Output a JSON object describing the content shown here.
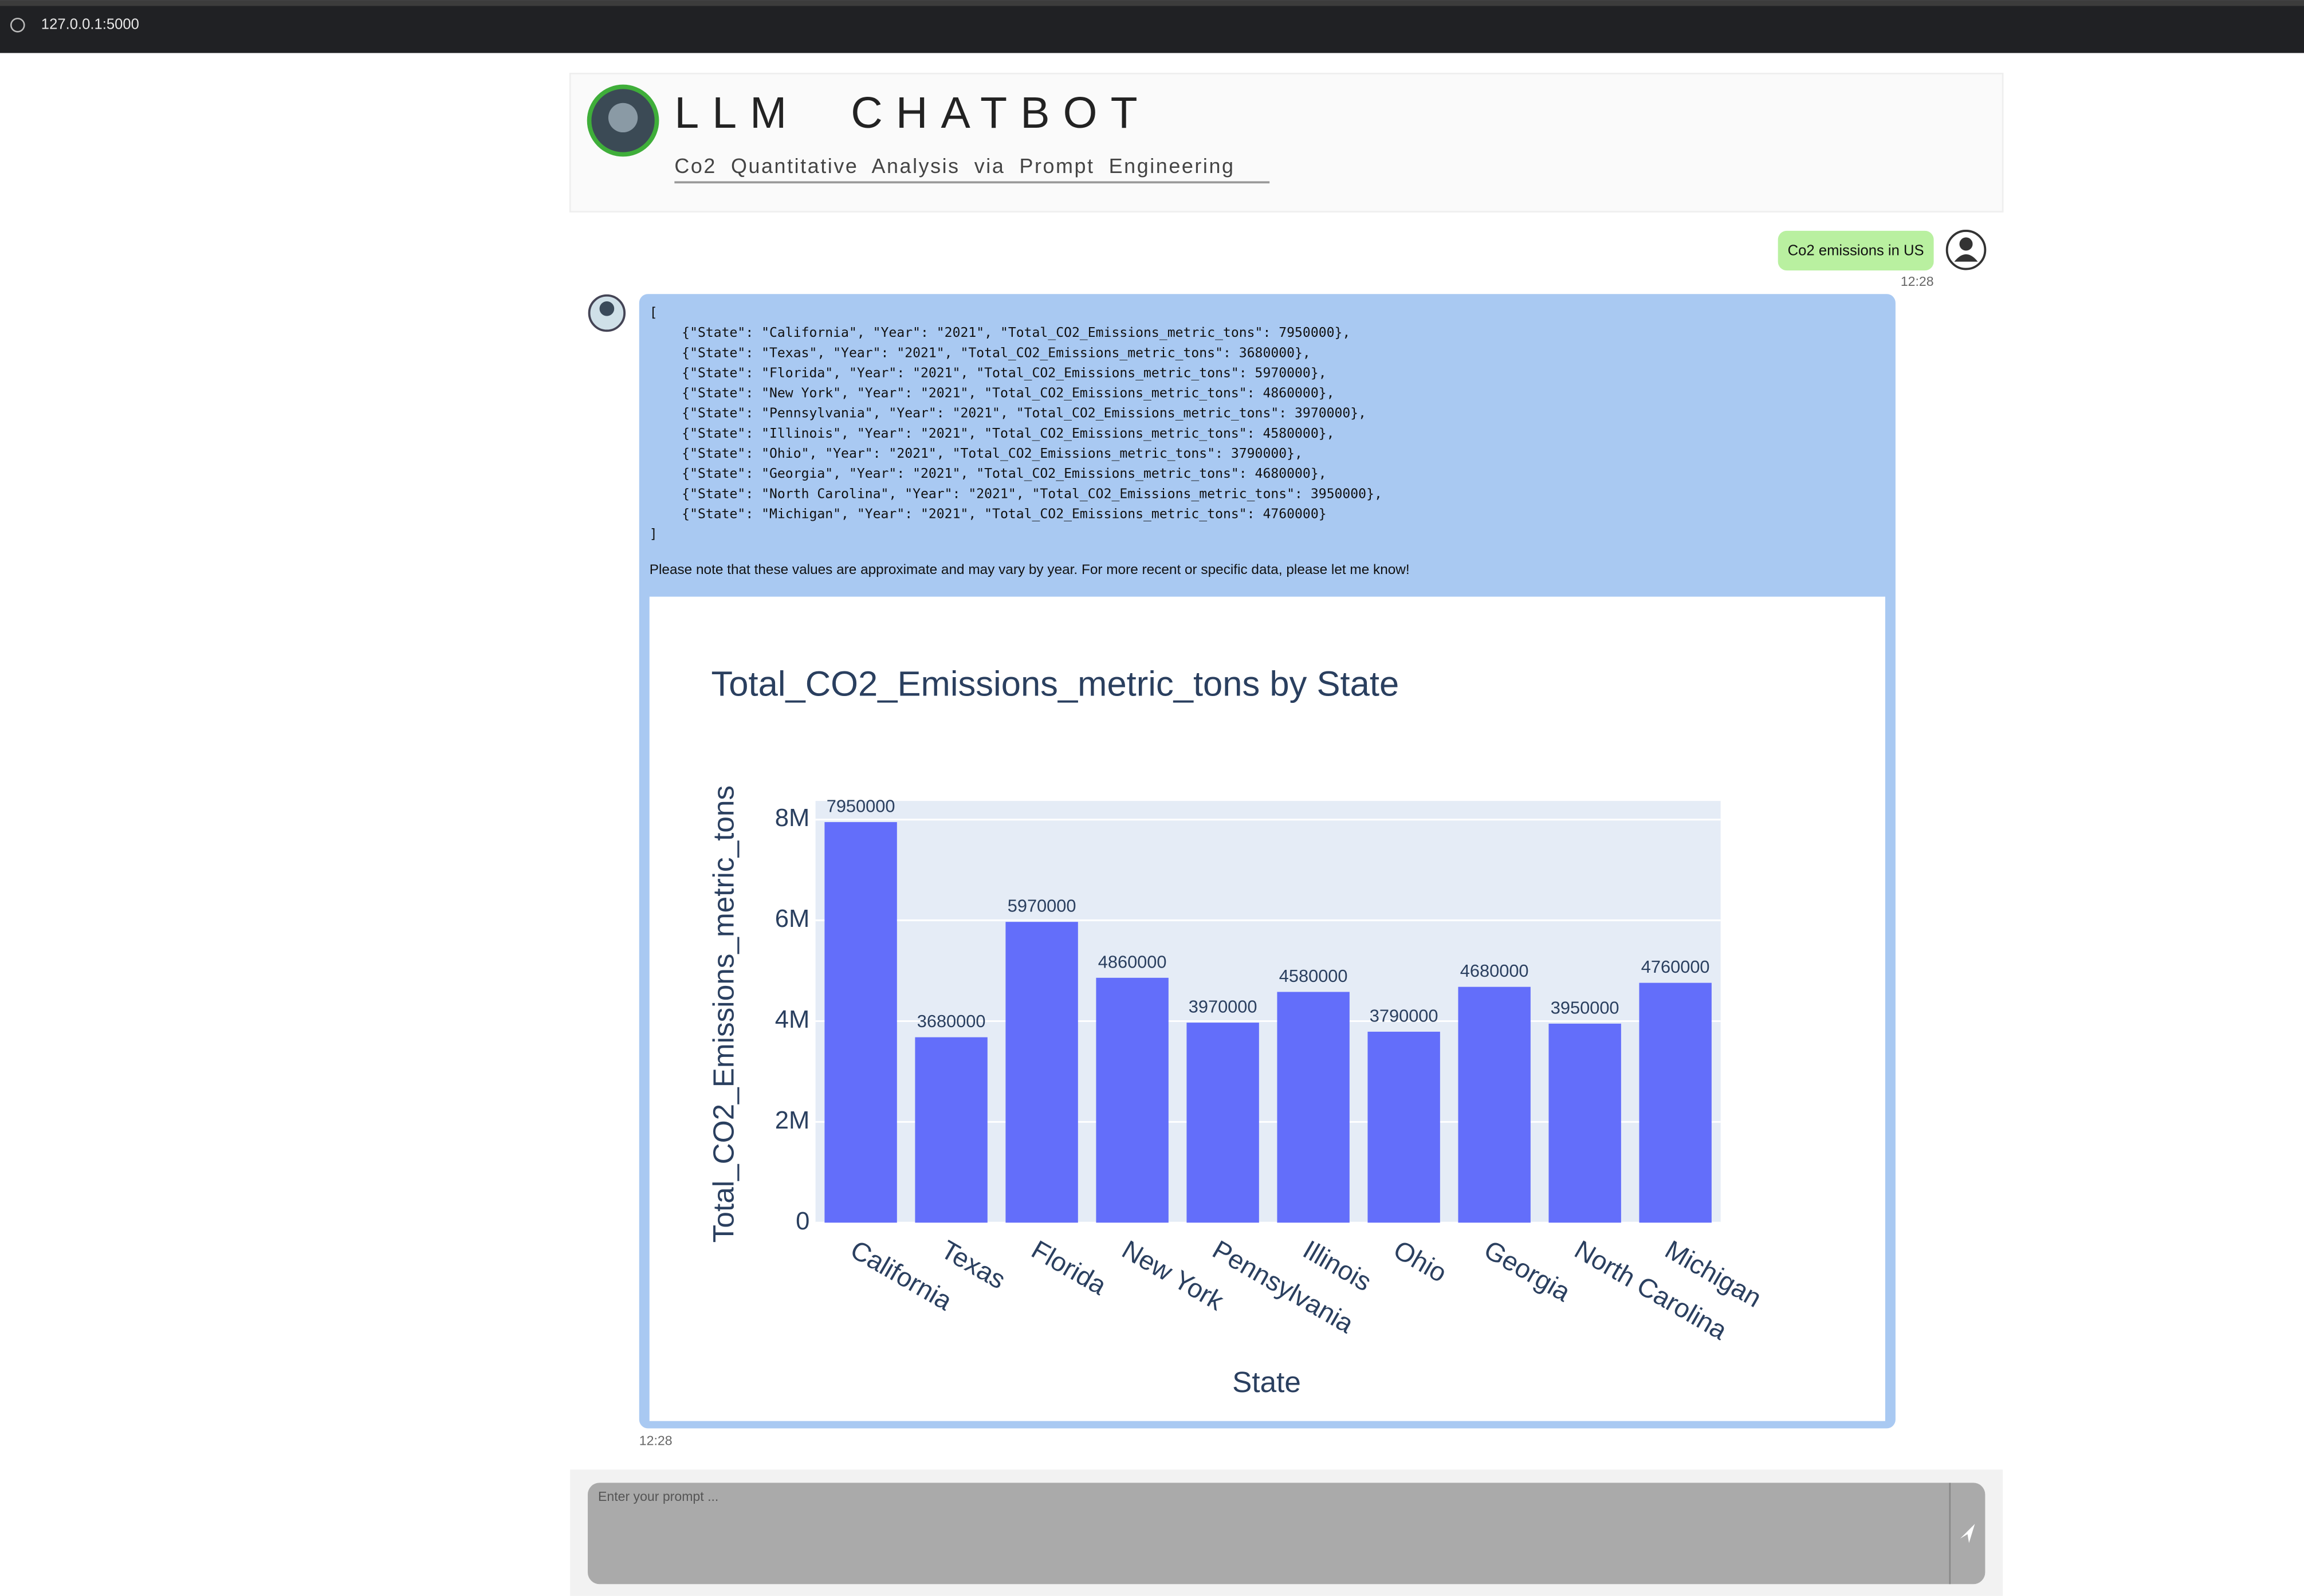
{
  "browser": {
    "url": "127.0.0.1:5000"
  },
  "header": {
    "title": "LLM  CHATBOT",
    "subtitle": "Co2  Quantitative  Analysis  via  Prompt  Engineering"
  },
  "user_message": {
    "text": "Co2 emissions in US",
    "time": "12:28"
  },
  "bot_message": {
    "json_lines": [
      "[",
      "{\"State\": \"California\", \"Year\": \"2021\", \"Total_CO2_Emissions_metric_tons\": 7950000},",
      "{\"State\": \"Texas\", \"Year\": \"2021\", \"Total_CO2_Emissions_metric_tons\": 3680000},",
      "{\"State\": \"Florida\", \"Year\": \"2021\", \"Total_CO2_Emissions_metric_tons\": 5970000},",
      "{\"State\": \"New York\", \"Year\": \"2021\", \"Total_CO2_Emissions_metric_tons\": 4860000},",
      "{\"State\": \"Pennsylvania\", \"Year\": \"2021\", \"Total_CO2_Emissions_metric_tons\": 3970000},",
      "{\"State\": \"Illinois\", \"Year\": \"2021\", \"Total_CO2_Emissions_metric_tons\": 4580000},",
      "{\"State\": \"Ohio\", \"Year\": \"2021\", \"Total_CO2_Emissions_metric_tons\": 3790000},",
      "{\"State\": \"Georgia\", \"Year\": \"2021\", \"Total_CO2_Emissions_metric_tons\": 4680000},",
      "{\"State\": \"North Carolina\", \"Year\": \"2021\", \"Total_CO2_Emissions_metric_tons\": 3950000},",
      "{\"State\": \"Michigan\", \"Year\": \"2021\", \"Total_CO2_Emissions_metric_tons\": 4760000}",
      "]"
    ],
    "note": "Please note that these values are approximate and may vary by year. For more recent or specific data, please let me know!",
    "time": "12:28"
  },
  "input": {
    "placeholder": "Enter your prompt ..."
  },
  "chart_data": {
    "type": "bar",
    "title": "Total_CO2_Emissions_metric_tons by State",
    "x_label": "State",
    "y_label": "Total_CO2_Emissions_metric_tons",
    "categories": [
      "California",
      "Texas",
      "Florida",
      "New York",
      "Pennsylvania",
      "Illinois",
      "Ohio",
      "Georgia",
      "North Carolina",
      "Michigan"
    ],
    "values": [
      7950000,
      3680000,
      5970000,
      4860000,
      3970000,
      4580000,
      3790000,
      4680000,
      3950000,
      4760000
    ],
    "color": "#636efa",
    "ylim": [
      0,
      8370000
    ],
    "yticks": [
      0,
      {
        "value": 2000000,
        "label": "2M"
      },
      {
        "value": 4000000,
        "label": "4M"
      },
      {
        "value": 6000000,
        "label": "6M"
      },
      {
        "value": 8000000,
        "label": "8M"
      }
    ],
    "grid": true
  }
}
